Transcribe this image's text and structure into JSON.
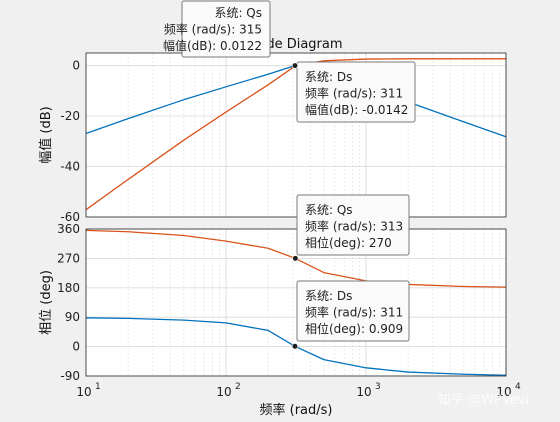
{
  "chart_data": {
    "type": "line",
    "title": "Bode Diagram",
    "xlabel": "频率 (rad/s)",
    "x_scale": "log",
    "xlim": [
      10,
      10000
    ],
    "x_ticks": [
      10,
      100,
      1000,
      10000
    ],
    "x_tick_labels": [
      {
        "base": "10",
        "exp": "1"
      },
      {
        "base": "10",
        "exp": "2"
      },
      {
        "base": "10",
        "exp": "3"
      },
      {
        "base": "10",
        "exp": "4"
      }
    ],
    "grid": true,
    "panels": [
      {
        "id": "magnitude",
        "ylabel": "幅值 (dB)",
        "ylim": [
          -60,
          5
        ],
        "y_ticks": [
          0,
          -20,
          -40,
          -60
        ],
        "y_tick_labels": [
          "0",
          "-20",
          "-40",
          "-60"
        ],
        "series": [
          {
            "name": "Ds",
            "color": "#0072BD",
            "x": [
              10,
              20,
              50,
              100,
              200,
              311,
              500,
              1000,
              2000,
              5000,
              10000
            ],
            "y": [
              -26.9,
              -21.0,
              -13.5,
              -8.4,
              -3.4,
              -0.0142,
              -3.1,
              -8.5,
              -14.4,
              -22.3,
              -28.2
            ]
          },
          {
            "name": "Qs",
            "color": "#D95319",
            "x": [
              10,
              20,
              50,
              100,
              200,
              315,
              500,
              1000,
              2000,
              5000,
              10000
            ],
            "y": [
              -57.1,
              -45.1,
              -29.5,
              -18.4,
              -7.6,
              0.0122,
              1.9,
              2.6,
              2.7,
              2.7,
              2.7
            ]
          }
        ]
      },
      {
        "id": "phase",
        "ylabel": "相位 (deg)",
        "ylim": [
          -90,
          360
        ],
        "y_ticks": [
          360,
          270,
          180,
          90,
          0,
          -90
        ],
        "y_tick_labels": [
          "360",
          "270",
          "180",
          "90",
          "0",
          "-90"
        ],
        "series": [
          {
            "name": "Ds",
            "color": "#0072BD",
            "x": [
              10,
              20,
              50,
              100,
              200,
              311,
              500,
              1000,
              2000,
              5000,
              10000
            ],
            "y": [
              88.2,
              86.4,
              81.1,
              72.7,
              49.5,
              0.909,
              -39.8,
              -65.0,
              -78.0,
              -84.7,
              -87.7
            ]
          },
          {
            "name": "Qs",
            "color": "#D95319",
            "x": [
              10,
              20,
              50,
              100,
              200,
              313,
              500,
              1000,
              2000,
              5000,
              10000
            ],
            "y": [
              355.7,
              351.6,
              340.1,
              322.8,
              301.0,
              270,
              226.6,
              201.2,
              190.3,
              184.0,
              182.0
            ]
          }
        ]
      }
    ],
    "datatips": [
      {
        "panel": "magnitude",
        "series": "Qs",
        "x": 315,
        "y": 0.0122,
        "lines": [
          "系统: Qs",
          "频率 (rad/s): 315",
          "幅值(dB): 0.0122"
        ]
      },
      {
        "panel": "magnitude",
        "series": "Ds",
        "x": 311,
        "y": -0.0142,
        "lines": [
          "系统: Ds",
          "频率 (rad/s): 311",
          "幅值(dB): -0.0142"
        ]
      },
      {
        "panel": "phase",
        "series": "Qs",
        "x": 313,
        "y": 270,
        "lines": [
          "系统: Qs",
          "频率 (rad/s): 313",
          "相位(deg): 270"
        ]
      },
      {
        "panel": "phase",
        "series": "Ds",
        "x": 311,
        "y": 0.909,
        "lines": [
          "系统: Ds",
          "频率 (rad/s): 311",
          "相位(deg): 0.909"
        ]
      }
    ]
  },
  "watermark": "知乎 @WPVevi"
}
